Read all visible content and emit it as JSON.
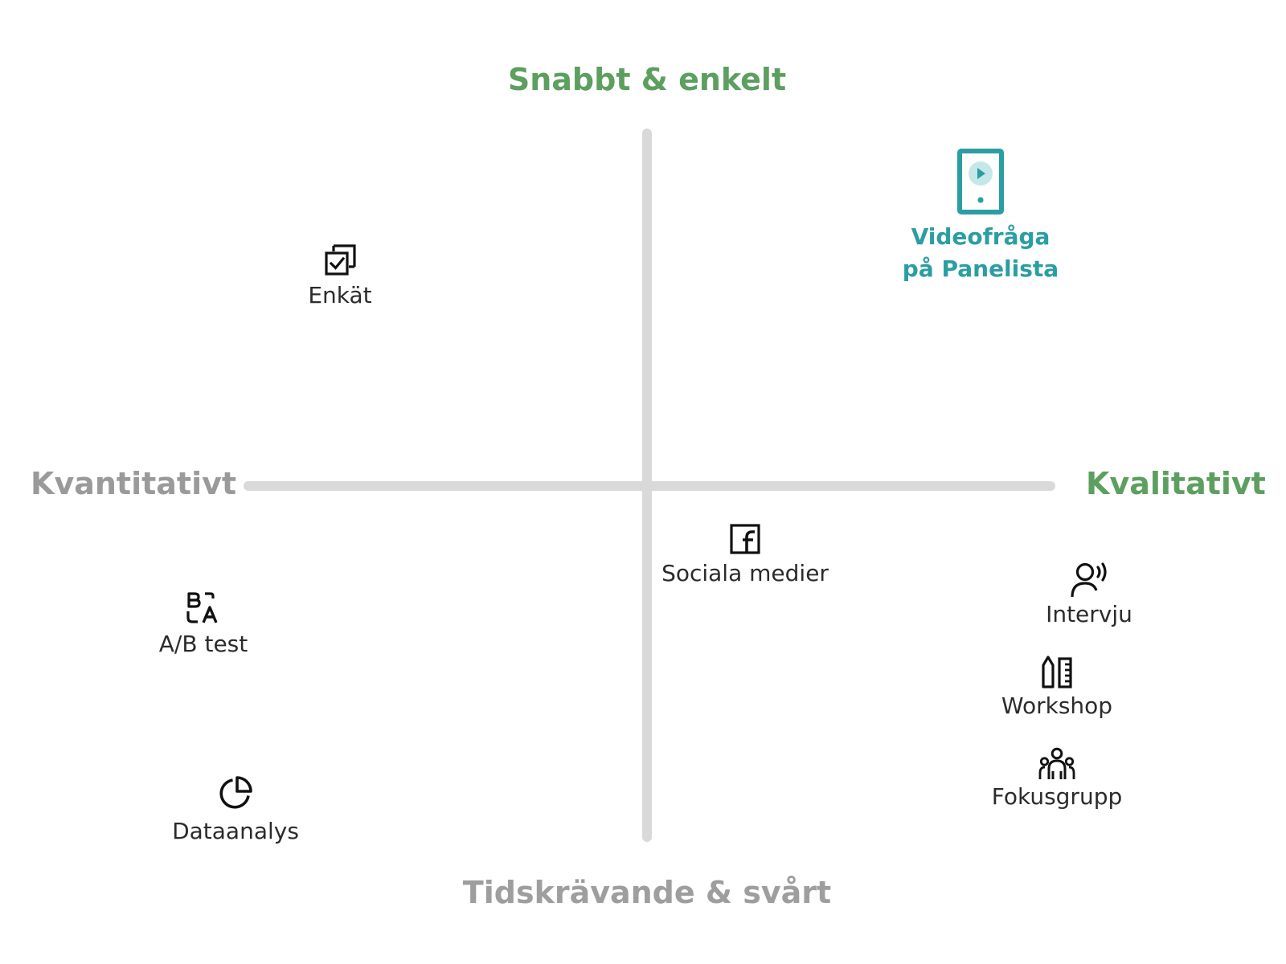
{
  "axes": {
    "top": "Snabbt & enkelt",
    "bottom": "Tidskrävande & svårt",
    "left": "Kvantitativt",
    "right": "Kvalitativt"
  },
  "colors": {
    "accent_green": "#5c9f5f",
    "muted_gray": "#9e9e9e",
    "highlight_teal": "#2a9ea3",
    "axis_line": "#d9d9d9"
  },
  "methods": [
    {
      "icon": "survey-checkbox-icon",
      "label": "Enkät"
    },
    {
      "icon": "tablet-video-icon",
      "label_line1": "Videofråga",
      "label_line2": "på Panelista",
      "highlighted": true
    },
    {
      "icon": "facebook-icon",
      "label": "Sociala medier"
    },
    {
      "icon": "ab-test-icon",
      "label": "A/B test"
    },
    {
      "icon": "interview-person-icon",
      "label": "Intervju"
    },
    {
      "icon": "workshop-tools-icon",
      "label": "Workshop"
    },
    {
      "icon": "focus-group-icon",
      "label": "Fokusgrupp"
    },
    {
      "icon": "pie-chart-icon",
      "label": "Dataanalys"
    }
  ]
}
